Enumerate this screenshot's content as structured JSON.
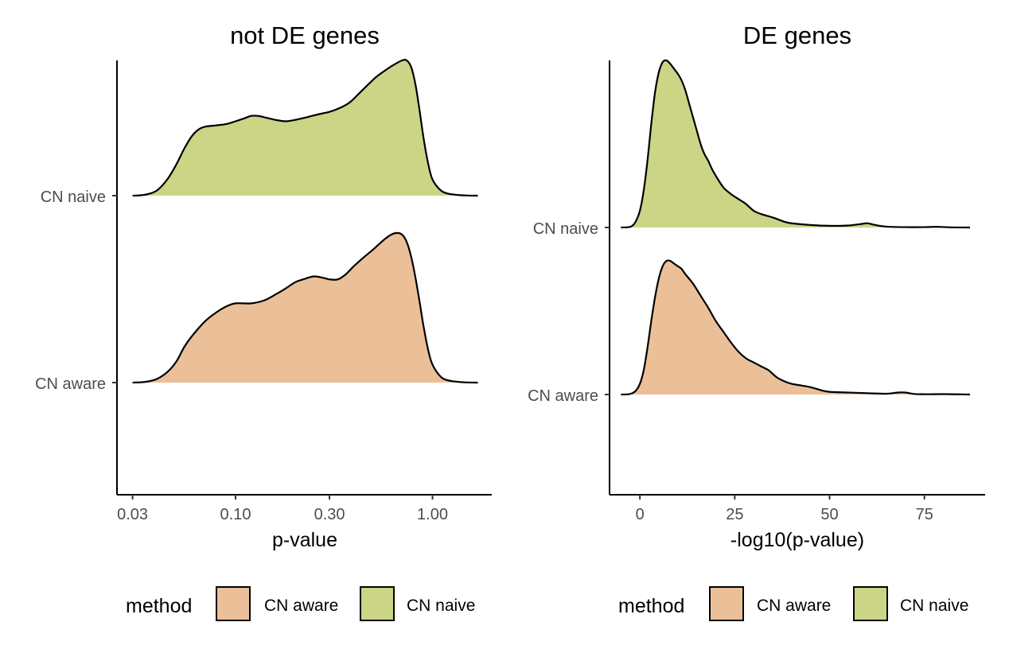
{
  "colors": {
    "cn_aware": "#EBC098",
    "cn_naive": "#CBD585",
    "outline": "#000000",
    "axis": "#000000",
    "tick_text": "#4d4d4d"
  },
  "chart_data": [
    {
      "type": "area",
      "subtype": "ridgeline-density",
      "title": "not DE genes",
      "xlabel": "p-value",
      "ylabel": "",
      "x_scale": "log10",
      "xlim": [
        0.025,
        2.0
      ],
      "x_ticks": [
        0.03,
        0.1,
        0.3,
        1.0
      ],
      "x_tick_labels": [
        "0.03",
        "0.10",
        "0.30",
        "1.00"
      ],
      "categories": [
        "CN aware",
        "CN naive"
      ],
      "grid": false,
      "legend": {
        "title": "method",
        "placement": "bottom",
        "entries": [
          "CN aware",
          "CN naive"
        ]
      },
      "series": [
        {
          "name": "CN aware",
          "x": [
            0.03,
            0.033,
            0.036,
            0.04,
            0.045,
            0.05,
            0.055,
            0.06,
            0.07,
            0.08,
            0.09,
            0.1,
            0.12,
            0.14,
            0.16,
            0.18,
            0.2,
            0.22,
            0.25,
            0.28,
            0.3,
            0.33,
            0.36,
            0.4,
            0.45,
            0.5,
            0.55,
            0.6,
            0.65,
            0.7,
            0.74,
            0.78,
            0.82,
            0.86,
            0.9,
            0.95,
            1.0,
            1.1,
            1.2,
            1.35,
            1.5,
            1.7
          ],
          "y": [
            0.0,
            0.002,
            0.008,
            0.025,
            0.07,
            0.14,
            0.24,
            0.31,
            0.41,
            0.47,
            0.51,
            0.53,
            0.53,
            0.55,
            0.59,
            0.63,
            0.67,
            0.69,
            0.71,
            0.7,
            0.69,
            0.69,
            0.72,
            0.78,
            0.84,
            0.89,
            0.94,
            0.98,
            1.0,
            0.99,
            0.94,
            0.84,
            0.7,
            0.54,
            0.38,
            0.22,
            0.12,
            0.04,
            0.015,
            0.005,
            0.001,
            0.0
          ]
        },
        {
          "name": "CN naive",
          "x": [
            0.03,
            0.033,
            0.036,
            0.04,
            0.045,
            0.05,
            0.055,
            0.06,
            0.065,
            0.07,
            0.08,
            0.09,
            0.1,
            0.11,
            0.12,
            0.13,
            0.14,
            0.16,
            0.18,
            0.2,
            0.23,
            0.26,
            0.3,
            0.34,
            0.38,
            0.42,
            0.47,
            0.52,
            0.58,
            0.64,
            0.7,
            0.74,
            0.78,
            0.82,
            0.86,
            0.9,
            0.95,
            1.0,
            1.1,
            1.2,
            1.35,
            1.5,
            1.7
          ],
          "y": [
            0.0,
            0.003,
            0.012,
            0.04,
            0.12,
            0.23,
            0.35,
            0.44,
            0.49,
            0.51,
            0.52,
            0.53,
            0.55,
            0.57,
            0.59,
            0.59,
            0.58,
            0.56,
            0.55,
            0.56,
            0.58,
            0.6,
            0.62,
            0.65,
            0.69,
            0.75,
            0.82,
            0.88,
            0.93,
            0.97,
            1.0,
            1.0,
            0.95,
            0.82,
            0.63,
            0.43,
            0.24,
            0.12,
            0.04,
            0.015,
            0.005,
            0.001,
            0.0
          ]
        }
      ]
    },
    {
      "type": "area",
      "subtype": "ridgeline-density",
      "title": "DE genes",
      "xlabel": "-log10(p-value)",
      "ylabel": "",
      "x_scale": "linear",
      "xlim": [
        -8,
        91
      ],
      "x_ticks": [
        0,
        25,
        50,
        75
      ],
      "x_tick_labels": [
        "0",
        "25",
        "50",
        "75"
      ],
      "categories": [
        "CN aware",
        "CN naive"
      ],
      "grid": false,
      "legend": {
        "title": "method",
        "placement": "bottom",
        "entries": [
          "CN aware",
          "CN naive"
        ]
      },
      "series": [
        {
          "name": "CN aware",
          "x": [
            -5,
            -3,
            -2,
            -1,
            0,
            1,
            2,
            3,
            4,
            5,
            6,
            7,
            8,
            9,
            10,
            11,
            12,
            14,
            16,
            18,
            20,
            22,
            24,
            26,
            28,
            30,
            32,
            34,
            36,
            38,
            40,
            42,
            45,
            48,
            50,
            55,
            60,
            65,
            68,
            70,
            72,
            75,
            80,
            85,
            87
          ],
          "y": [
            0.0,
            0.002,
            0.01,
            0.03,
            0.08,
            0.18,
            0.35,
            0.55,
            0.73,
            0.87,
            0.96,
            1.0,
            1.0,
            0.98,
            0.96,
            0.94,
            0.9,
            0.83,
            0.74,
            0.65,
            0.55,
            0.47,
            0.39,
            0.32,
            0.27,
            0.24,
            0.21,
            0.18,
            0.13,
            0.1,
            0.08,
            0.07,
            0.055,
            0.03,
            0.02,
            0.015,
            0.01,
            0.006,
            0.015,
            0.015,
            0.005,
            0.002,
            0.003,
            0.001,
            0.0
          ]
        },
        {
          "name": "CN naive",
          "x": [
            -5,
            -3,
            -2,
            -1,
            0,
            1,
            2,
            3,
            4,
            5,
            6,
            7,
            8,
            9,
            10,
            11,
            12,
            13,
            14,
            15,
            16,
            17,
            18,
            19,
            20,
            22,
            24,
            26,
            28,
            30,
            32,
            35,
            38,
            40,
            45,
            50,
            55,
            58,
            60,
            62,
            65,
            70,
            75,
            78,
            82,
            87
          ],
          "y": [
            0.0,
            0.002,
            0.01,
            0.04,
            0.1,
            0.22,
            0.4,
            0.62,
            0.81,
            0.93,
            0.99,
            1.0,
            0.98,
            0.95,
            0.92,
            0.88,
            0.82,
            0.74,
            0.66,
            0.58,
            0.5,
            0.44,
            0.4,
            0.35,
            0.31,
            0.24,
            0.2,
            0.17,
            0.14,
            0.1,
            0.08,
            0.06,
            0.035,
            0.025,
            0.015,
            0.01,
            0.012,
            0.02,
            0.025,
            0.015,
            0.005,
            0.002,
            0.002,
            0.004,
            0.001,
            0.0
          ]
        }
      ]
    }
  ]
}
